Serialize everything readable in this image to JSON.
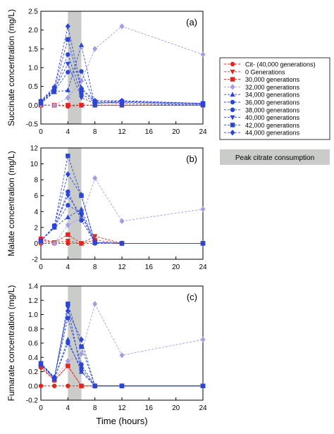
{
  "figure": {
    "xlabel": "Time (hours)",
    "shade_label": "Peak citrate consumption",
    "shade_range": [
      4,
      6
    ],
    "shade_color": "#c9ccc9"
  },
  "series_styles": [
    {
      "name": "Cit- (40,000 generations)",
      "color": "#e8221c",
      "marker": "circle"
    },
    {
      "name": "0 Generations",
      "color": "#e8221c",
      "marker": "triangle-down"
    },
    {
      "name": "30,000 generations",
      "color": "#e8221c",
      "marker": "square"
    },
    {
      "name": "32,000 generations",
      "color": "#a59be6",
      "marker": "diamond"
    },
    {
      "name": "34,000 generations",
      "color": "#2b46d6",
      "marker": "triangle-up"
    },
    {
      "name": "36,000 generations",
      "color": "#2b46d6",
      "marker": "circle"
    },
    {
      "name": "38,000 generations",
      "color": "#2b46d6",
      "marker": "circle"
    },
    {
      "name": "40,000 generations",
      "color": "#2b46d6",
      "marker": "triangle-down"
    },
    {
      "name": "42,000 generations",
      "color": "#2b46d6",
      "marker": "square"
    },
    {
      "name": "44,000 generations",
      "color": "#2b46d6",
      "marker": "diamond"
    }
  ],
  "chart_data": [
    {
      "type": "line",
      "panel_label": "(a)",
      "ylabel": "Succinate concentration (mg/L)",
      "x": [
        0,
        2,
        4,
        6,
        8,
        12,
        24
      ],
      "xlim": [
        0,
        24
      ],
      "ylim": [
        -0.5,
        2.5
      ],
      "xticks": [
        "0",
        "4",
        "8",
        "12",
        "16",
        "20",
        "24"
      ],
      "xtick_values": [
        0,
        4,
        8,
        12,
        16,
        20,
        24
      ],
      "yticks": [
        "-0.5",
        "0.0",
        "0.5",
        "1.0",
        "1.5",
        "2.0",
        "2.5"
      ],
      "ytick_values": [
        -0.5,
        0,
        0.5,
        1.0,
        1.5,
        2.0,
        2.5
      ],
      "series": [
        {
          "name": "Cit- (40,000 generations)",
          "values": [
            0.0,
            0.0,
            -0.03,
            0.0,
            0.0,
            0.0,
            0.0
          ]
        },
        {
          "name": "0 Generations",
          "values": [
            0.0,
            0.0,
            0.0,
            0.0,
            0.0,
            0.0,
            0.0
          ]
        },
        {
          "name": "30,000 generations",
          "values": [
            0.0,
            0.0,
            0.0,
            0.0,
            0.0,
            0.0,
            0.0
          ]
        },
        {
          "name": "32,000 generations",
          "values": [
            0.02,
            0.0,
            0.2,
            0.65,
            1.5,
            2.1,
            1.35
          ]
        },
        {
          "name": "34,000 generations",
          "values": [
            0.05,
            0.35,
            0.4,
            1.6,
            0.0,
            0.0,
            0.0
          ]
        },
        {
          "name": "36,000 generations",
          "values": [
            0.05,
            0.38,
            0.88,
            0.9,
            0.05,
            0.1,
            0.02
          ]
        },
        {
          "name": "38,000 generations",
          "values": [
            0.08,
            0.4,
            1.35,
            0.3,
            0.08,
            0.05,
            0.0
          ]
        },
        {
          "name": "40,000 generations",
          "values": [
            0.1,
            0.42,
            1.1,
            0.2,
            0.05,
            0.08,
            0.03
          ]
        },
        {
          "name": "42,000 generations",
          "values": [
            0.1,
            0.45,
            1.75,
            0.4,
            0.1,
            0.1,
            0.05
          ]
        },
        {
          "name": "44,000 generations",
          "values": [
            0.12,
            0.48,
            2.1,
            0.45,
            0.12,
            0.12,
            0.05
          ]
        }
      ]
    },
    {
      "type": "line",
      "panel_label": "(b)",
      "ylabel": "Malate concentration (mg/L)",
      "x": [
        0,
        2,
        4,
        6,
        8,
        12,
        24
      ],
      "xlim": [
        0,
        24
      ],
      "ylim": [
        -2,
        12
      ],
      "xticks": [
        "0",
        "4",
        "8",
        "12",
        "16",
        "20",
        "24"
      ],
      "xtick_values": [
        0,
        4,
        8,
        12,
        16,
        20,
        24
      ],
      "yticks": [
        "-2",
        "0",
        "2",
        "4",
        "6",
        "8",
        "10",
        "12"
      ],
      "ytick_values": [
        -2,
        0,
        2,
        4,
        6,
        8,
        10,
        12
      ],
      "series": [
        {
          "name": "Cit- (40,000 generations)",
          "values": [
            0.0,
            0.0,
            0.0,
            0.0,
            0.0,
            0.0,
            0.0
          ]
        },
        {
          "name": "0 Generations",
          "values": [
            0.6,
            0.1,
            0.3,
            0.0,
            0.9,
            0.0,
            0.0
          ]
        },
        {
          "name": "30,000 generations",
          "values": [
            0.4,
            0.1,
            1.1,
            0.0,
            0.4,
            0.0,
            0.0
          ]
        },
        {
          "name": "32,000 generations",
          "values": [
            0.2,
            0.0,
            2.3,
            3.2,
            8.2,
            2.8,
            4.3
          ]
        },
        {
          "name": "34,000 generations",
          "values": [
            0.3,
            2.0,
            3.3,
            4.3,
            0.1,
            0.0,
            0.0
          ]
        },
        {
          "name": "36,000 generations",
          "values": [
            0.3,
            2.1,
            4.8,
            3.8,
            0.1,
            0.0,
            0.0
          ]
        },
        {
          "name": "38,000 generations",
          "values": [
            0.3,
            2.0,
            6.5,
            2.9,
            0.1,
            0.0,
            0.0
          ]
        },
        {
          "name": "40,000 generations",
          "values": [
            0.3,
            2.1,
            6.0,
            3.5,
            0.1,
            0.0,
            0.0
          ]
        },
        {
          "name": "42,000 generations",
          "values": [
            0.3,
            2.2,
            11.0,
            6.0,
            0.1,
            0.0,
            0.0
          ]
        },
        {
          "name": "44,000 generations",
          "values": [
            0.3,
            2.2,
            8.7,
            6.1,
            0.1,
            0.0,
            0.0
          ]
        }
      ]
    },
    {
      "type": "line",
      "panel_label": "(c)",
      "ylabel": "Fumarate concentration (mg/L)",
      "x": [
        0,
        2,
        4,
        6,
        8,
        12,
        24
      ],
      "xlim": [
        0,
        24
      ],
      "ylim": [
        -0.2,
        1.4
      ],
      "xticks": [
        "0",
        "4",
        "8",
        "12",
        "16",
        "20",
        "24"
      ],
      "xtick_values": [
        0,
        4,
        8,
        12,
        16,
        20,
        24
      ],
      "yticks": [
        "-0.2",
        "0.0",
        "0.2",
        "0.4",
        "0.6",
        "0.8",
        "1.0",
        "1.2",
        "1.4"
      ],
      "ytick_values": [
        -0.2,
        0,
        0.2,
        0.4,
        0.6,
        0.8,
        1.0,
        1.2,
        1.4
      ],
      "series": [
        {
          "name": "Cit- (40,000 generations)",
          "values": [
            0.0,
            0.0,
            0.0,
            0.0,
            0.0,
            0.0,
            0.0
          ]
        },
        {
          "name": "0 Generations",
          "values": [
            0.25,
            0.08,
            0.28,
            0.0,
            0.0,
            0.0,
            0.0
          ]
        },
        {
          "name": "30,000 generations",
          "values": [
            0.27,
            0.08,
            0.28,
            0.0,
            0.0,
            0.0,
            0.0
          ]
        },
        {
          "name": "32,000 generations",
          "values": [
            0.3,
            0.1,
            0.35,
            0.45,
            1.15,
            0.43,
            0.65
          ]
        },
        {
          "name": "34,000 generations",
          "values": [
            0.3,
            0.1,
            0.65,
            0.2,
            0.0,
            0.0,
            0.0
          ]
        },
        {
          "name": "36,000 generations",
          "values": [
            0.3,
            0.1,
            0.6,
            0.25,
            0.0,
            0.0,
            0.0
          ]
        },
        {
          "name": "38,000 generations",
          "values": [
            0.3,
            0.12,
            0.95,
            0.3,
            0.0,
            0.0,
            0.0
          ]
        },
        {
          "name": "40,000 generations",
          "values": [
            0.32,
            0.1,
            1.1,
            0.2,
            0.0,
            0.0,
            0.0
          ]
        },
        {
          "name": "42,000 generations",
          "values": [
            0.3,
            0.1,
            1.15,
            0.55,
            0.0,
            0.0,
            0.0
          ]
        },
        {
          "name": "44,000 generations",
          "values": [
            0.32,
            0.12,
            1.05,
            0.65,
            0.0,
            0.0,
            0.0
          ]
        }
      ]
    }
  ]
}
